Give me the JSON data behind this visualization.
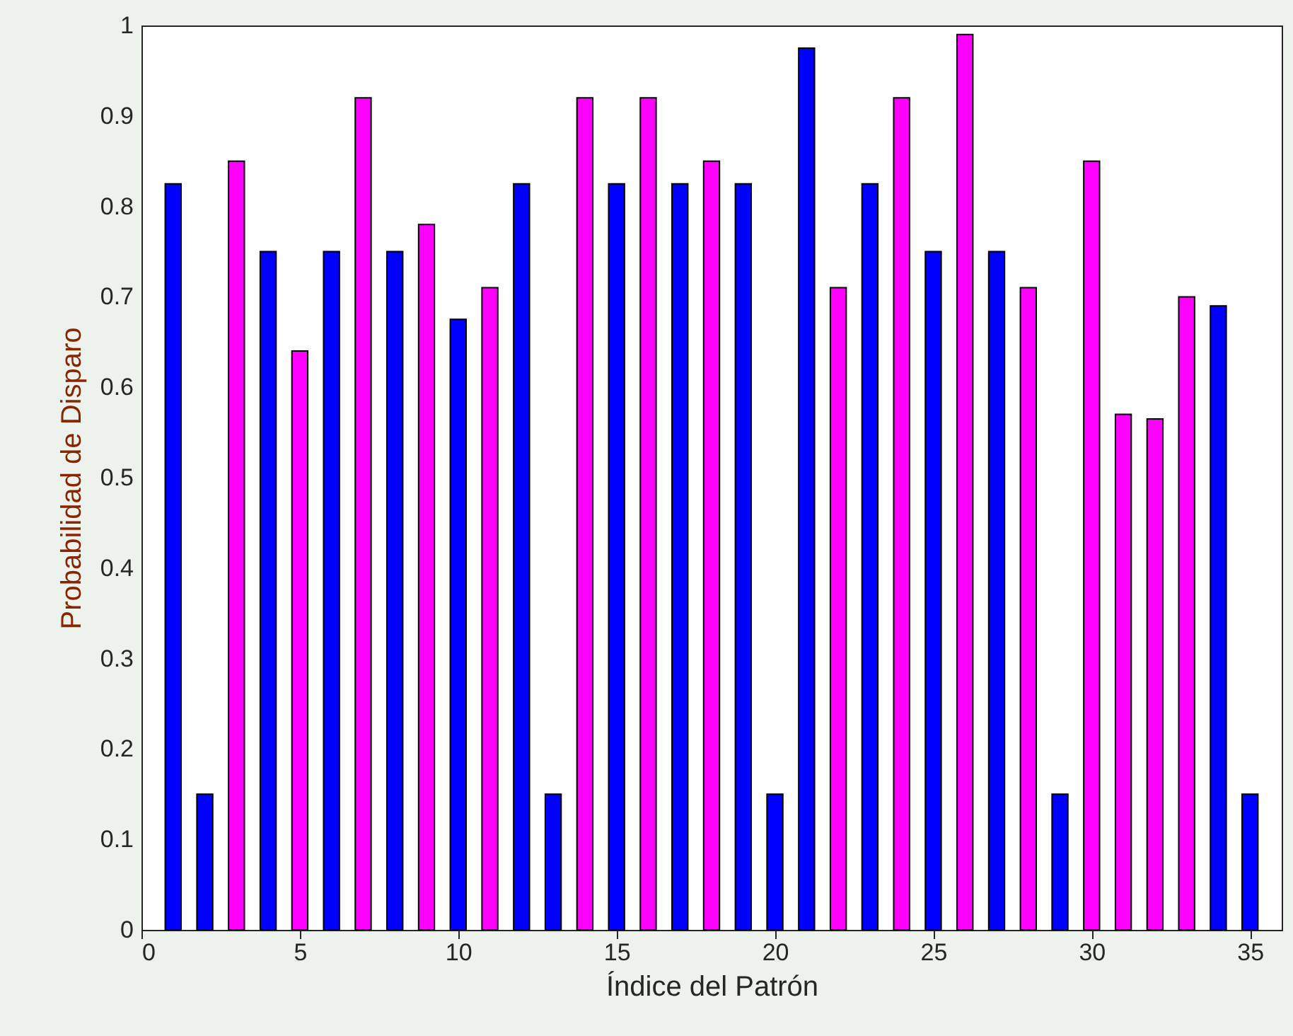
{
  "chart_data": {
    "type": "bar",
    "xlabel": "Índice del Patrón",
    "ylabel": "Probabilidad de Disparo",
    "x": [
      1,
      2,
      3,
      4,
      5,
      6,
      7,
      8,
      9,
      10,
      11,
      12,
      13,
      14,
      15,
      16,
      17,
      18,
      19,
      20,
      21,
      22,
      23,
      24,
      25,
      26,
      27,
      28,
      29,
      30,
      31,
      32,
      33,
      34,
      35
    ],
    "values": [
      0.825,
      0.15,
      0.85,
      0.75,
      0.64,
      0.75,
      0.92,
      0.75,
      0.78,
      0.675,
      0.71,
      0.825,
      0.15,
      0.92,
      0.825,
      0.92,
      0.825,
      0.85,
      0.825,
      0.15,
      0.975,
      0.71,
      0.825,
      0.92,
      0.75,
      0.99,
      0.75,
      0.71,
      0.15,
      0.85,
      0.57,
      0.565,
      0.7,
      0.69,
      0.15
    ],
    "colors": [
      "#0000ff",
      "#0000ff",
      "#ff00ff",
      "#0000ff",
      "#ff00ff",
      "#0000ff",
      "#ff00ff",
      "#0000ff",
      "#ff00ff",
      "#0000ff",
      "#ff00ff",
      "#0000ff",
      "#0000ff",
      "#ff00ff",
      "#0000ff",
      "#ff00ff",
      "#0000ff",
      "#ff00ff",
      "#0000ff",
      "#0000ff",
      "#0000ff",
      "#ff00ff",
      "#0000ff",
      "#ff00ff",
      "#0000ff",
      "#ff00ff",
      "#0000ff",
      "#ff00ff",
      "#0000ff",
      "#ff00ff",
      "#ff00ff",
      "#ff00ff",
      "#ff00ff",
      "#0000ff",
      "#0000ff"
    ],
    "xlim": [
      0,
      36
    ],
    "xticks": [
      0,
      5,
      10,
      15,
      20,
      25,
      30,
      35
    ],
    "ylim": [
      0,
      1
    ],
    "yticks": [
      0,
      0.1,
      0.2,
      0.3,
      0.4,
      0.5,
      0.6,
      0.7,
      0.8,
      0.9,
      1
    ],
    "grid": false
  }
}
